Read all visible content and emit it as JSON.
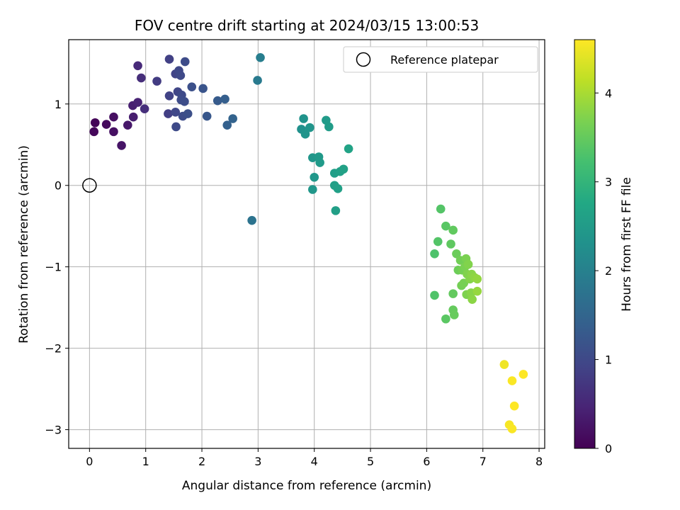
{
  "chart_data": {
    "type": "scatter",
    "title": "FOV centre drift starting at 2024/03/15 13:00:53",
    "xlabel": "Angular distance from reference (arcmin)",
    "ylabel": "Rotation from reference (arcmin)",
    "xlim": [
      -0.37,
      8.1
    ],
    "ylim": [
      -3.23,
      1.79
    ],
    "xticks": [
      0,
      1,
      2,
      3,
      4,
      5,
      6,
      7,
      8
    ],
    "yticks": [
      -3,
      -2,
      -1,
      0,
      1
    ],
    "grid": true,
    "legend": {
      "placement": "top-right",
      "entries": [
        "Reference platepar"
      ]
    },
    "reference_point": {
      "x": 0,
      "y": 0,
      "label": "Reference platepar"
    },
    "colorbar": {
      "label": "Hours from first FF file",
      "colormap": "viridis",
      "range": [
        0,
        4.6
      ],
      "ticks": [
        0,
        1,
        2,
        3,
        4
      ]
    },
    "points": [
      {
        "x": 0.1,
        "y": 0.77,
        "c": 0.05
      },
      {
        "x": 0.08,
        "y": 0.66,
        "c": 0.08
      },
      {
        "x": 0.3,
        "y": 0.75,
        "c": 0.12
      },
      {
        "x": 0.43,
        "y": 0.84,
        "c": 0.18
      },
      {
        "x": 0.43,
        "y": 0.66,
        "c": 0.2
      },
      {
        "x": 0.57,
        "y": 0.49,
        "c": 0.25
      },
      {
        "x": 0.68,
        "y": 0.74,
        "c": 0.3
      },
      {
        "x": 0.78,
        "y": 0.84,
        "c": 0.38
      },
      {
        "x": 0.77,
        "y": 0.98,
        "c": 0.4
      },
      {
        "x": 0.86,
        "y": 1.02,
        "c": 0.45
      },
      {
        "x": 0.86,
        "y": 1.47,
        "c": 0.55
      },
      {
        "x": 0.92,
        "y": 1.32,
        "c": 0.6
      },
      {
        "x": 0.98,
        "y": 0.94,
        "c": 0.62
      },
      {
        "x": 1.2,
        "y": 1.28,
        "c": 0.8
      },
      {
        "x": 1.4,
        "y": 0.88,
        "c": 0.85
      },
      {
        "x": 1.42,
        "y": 1.55,
        "c": 0.88
      },
      {
        "x": 1.42,
        "y": 1.1,
        "c": 0.9
      },
      {
        "x": 1.53,
        "y": 1.37,
        "c": 0.92
      },
      {
        "x": 1.57,
        "y": 1.15,
        "c": 0.95
      },
      {
        "x": 1.59,
        "y": 1.41,
        "c": 0.98
      },
      {
        "x": 1.62,
        "y": 1.35,
        "c": 1.0
      },
      {
        "x": 1.53,
        "y": 0.9,
        "c": 0.97
      },
      {
        "x": 1.54,
        "y": 0.72,
        "c": 1.02
      },
      {
        "x": 1.64,
        "y": 1.11,
        "c": 1.02
      },
      {
        "x": 1.63,
        "y": 1.05,
        "c": 1.05
      },
      {
        "x": 1.66,
        "y": 0.85,
        "c": 1.05
      },
      {
        "x": 1.69,
        "y": 1.03,
        "c": 1.07
      },
      {
        "x": 1.7,
        "y": 1.52,
        "c": 1.05
      },
      {
        "x": 1.75,
        "y": 0.88,
        "c": 1.1
      },
      {
        "x": 1.82,
        "y": 1.21,
        "c": 1.12
      },
      {
        "x": 2.02,
        "y": 1.19,
        "c": 1.2
      },
      {
        "x": 2.09,
        "y": 0.85,
        "c": 1.25
      },
      {
        "x": 2.28,
        "y": 1.04,
        "c": 1.32
      },
      {
        "x": 2.41,
        "y": 1.06,
        "c": 1.38
      },
      {
        "x": 2.45,
        "y": 0.74,
        "c": 1.42
      },
      {
        "x": 2.55,
        "y": 0.82,
        "c": 1.45
      },
      {
        "x": 2.89,
        "y": -0.43,
        "c": 1.75
      },
      {
        "x": 2.99,
        "y": 1.29,
        "c": 1.88
      },
      {
        "x": 3.04,
        "y": 1.57,
        "c": 1.95
      },
      {
        "x": 3.77,
        "y": 0.69,
        "c": 2.3
      },
      {
        "x": 3.81,
        "y": 0.82,
        "c": 2.33
      },
      {
        "x": 3.84,
        "y": 0.63,
        "c": 2.35
      },
      {
        "x": 3.92,
        "y": 0.71,
        "c": 2.38
      },
      {
        "x": 3.97,
        "y": 0.34,
        "c": 2.4
      },
      {
        "x": 4.0,
        "y": 0.1,
        "c": 2.42
      },
      {
        "x": 3.97,
        "y": -0.05,
        "c": 2.42
      },
      {
        "x": 4.08,
        "y": 0.35,
        "c": 2.45
      },
      {
        "x": 4.1,
        "y": 0.28,
        "c": 2.47
      },
      {
        "x": 4.21,
        "y": 0.8,
        "c": 2.5
      },
      {
        "x": 4.26,
        "y": 0.72,
        "c": 2.52
      },
      {
        "x": 4.36,
        "y": 0.15,
        "c": 2.55
      },
      {
        "x": 4.36,
        "y": 0.0,
        "c": 2.57
      },
      {
        "x": 4.38,
        "y": -0.31,
        "c": 2.58
      },
      {
        "x": 4.42,
        "y": -0.04,
        "c": 2.6
      },
      {
        "x": 4.46,
        "y": 0.17,
        "c": 2.6
      },
      {
        "x": 4.52,
        "y": 0.2,
        "c": 2.62
      },
      {
        "x": 4.61,
        "y": 0.45,
        "c": 2.65
      },
      {
        "x": 6.14,
        "y": -0.84,
        "c": 3.3
      },
      {
        "x": 6.14,
        "y": -1.35,
        "c": 3.32
      },
      {
        "x": 6.2,
        "y": -0.69,
        "c": 3.35
      },
      {
        "x": 6.25,
        "y": -0.29,
        "c": 3.36
      },
      {
        "x": 6.34,
        "y": -0.5,
        "c": 3.4
      },
      {
        "x": 6.34,
        "y": -1.64,
        "c": 3.42
      },
      {
        "x": 6.43,
        "y": -0.72,
        "c": 3.45
      },
      {
        "x": 6.47,
        "y": -0.55,
        "c": 3.47
      },
      {
        "x": 6.47,
        "y": -1.33,
        "c": 3.48
      },
      {
        "x": 6.47,
        "y": -1.53,
        "c": 3.5
      },
      {
        "x": 6.49,
        "y": -1.59,
        "c": 3.52
      },
      {
        "x": 6.53,
        "y": -0.84,
        "c": 3.55
      },
      {
        "x": 6.56,
        "y": -1.04,
        "c": 3.57
      },
      {
        "x": 6.6,
        "y": -0.92,
        "c": 3.6
      },
      {
        "x": 6.62,
        "y": -1.23,
        "c": 3.62
      },
      {
        "x": 6.63,
        "y": -1.04,
        "c": 3.63
      },
      {
        "x": 6.66,
        "y": -1.2,
        "c": 3.65
      },
      {
        "x": 6.68,
        "y": -1.0,
        "c": 3.67
      },
      {
        "x": 6.7,
        "y": -0.9,
        "c": 3.68
      },
      {
        "x": 6.71,
        "y": -1.34,
        "c": 3.7
      },
      {
        "x": 6.72,
        "y": -1.09,
        "c": 3.72
      },
      {
        "x": 6.74,
        "y": -0.97,
        "c": 3.73
      },
      {
        "x": 6.77,
        "y": -1.15,
        "c": 3.75
      },
      {
        "x": 6.79,
        "y": -1.32,
        "c": 3.77
      },
      {
        "x": 6.8,
        "y": -1.09,
        "c": 3.78
      },
      {
        "x": 6.81,
        "y": -1.4,
        "c": 3.8
      },
      {
        "x": 6.85,
        "y": -1.13,
        "c": 3.82
      },
      {
        "x": 6.9,
        "y": -1.15,
        "c": 3.85
      },
      {
        "x": 6.9,
        "y": -1.3,
        "c": 3.87
      },
      {
        "x": 7.38,
        "y": -2.2,
        "c": 4.5
      },
      {
        "x": 7.47,
        "y": -2.94,
        "c": 4.55
      },
      {
        "x": 7.52,
        "y": -2.99,
        "c": 4.57
      },
      {
        "x": 7.52,
        "y": -2.4,
        "c": 4.58
      },
      {
        "x": 7.56,
        "y": -2.71,
        "c": 4.6
      },
      {
        "x": 7.72,
        "y": -2.32,
        "c": 4.6
      }
    ]
  }
}
